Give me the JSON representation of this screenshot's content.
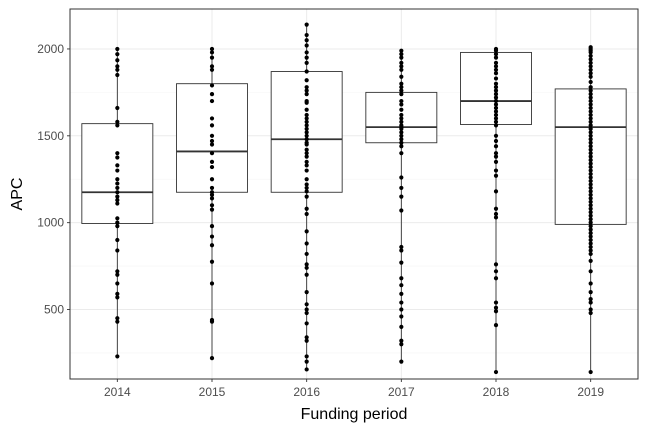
{
  "chart_data": {
    "type": "box",
    "xlabel": "Funding period",
    "ylabel": "APC",
    "ylim": [
      100,
      2230
    ],
    "yticks": [
      500,
      1000,
      1500,
      2000
    ],
    "grid": true,
    "legend": "none",
    "colors": {
      "panel_border": "#333333",
      "grid_major": "#ebebeb",
      "grid_minor": "#f5f5f5",
      "points": "#000000",
      "box_outline": "#333333"
    },
    "categories": [
      "2014",
      "2015",
      "2016",
      "2017",
      "2018",
      "2019"
    ],
    "boxes": [
      {
        "category": "2014",
        "whisker_low": 230,
        "q1": 995,
        "median": 1175,
        "q3": 1570,
        "whisker_high": 2000,
        "points": [
          2000,
          1970,
          1935,
          1900,
          1880,
          1850,
          1660,
          1580,
          1560,
          1400,
          1375,
          1330,
          1300,
          1250,
          1225,
          1200,
          1175,
          1150,
          1130,
          1110,
          1025,
          1000,
          980,
          900,
          840,
          720,
          700,
          650,
          590,
          570,
          450,
          430,
          230
        ]
      },
      {
        "category": "2015",
        "whisker_low": 220,
        "q1": 1175,
        "median": 1410,
        "q3": 1800,
        "whisker_high": 2000,
        "points": [
          2000,
          1980,
          1950,
          1900,
          1880,
          1790,
          1740,
          1700,
          1600,
          1560,
          1500,
          1470,
          1450,
          1400,
          1350,
          1320,
          1250,
          1200,
          1175,
          1160,
          1140,
          1100,
          1075,
          980,
          920,
          870,
          775,
          650,
          440,
          430,
          220
        ]
      },
      {
        "category": "2016",
        "whisker_low": 155,
        "q1": 1175,
        "median": 1480,
        "q3": 1870,
        "whisker_high": 2140,
        "points": [
          2140,
          2080,
          2050,
          2020,
          1980,
          1950,
          1920,
          1870,
          1820,
          1780,
          1760,
          1740,
          1700,
          1690,
          1650,
          1620,
          1600,
          1580,
          1560,
          1540,
          1520,
          1500,
          1480,
          1460,
          1450,
          1420,
          1400,
          1380,
          1350,
          1330,
          1300,
          1250,
          1220,
          1200,
          1180,
          1150,
          1080,
          1050,
          950,
          880,
          820,
          760,
          740,
          700,
          600,
          530,
          500,
          480,
          420,
          340,
          320,
          230,
          200,
          155
        ]
      },
      {
        "category": "2017",
        "whisker_low": 200,
        "q1": 1460,
        "median": 1550,
        "q3": 1750,
        "whisker_high": 1990,
        "points": [
          1990,
          1970,
          1950,
          1920,
          1900,
          1880,
          1840,
          1800,
          1780,
          1760,
          1740,
          1700,
          1680,
          1650,
          1620,
          1600,
          1580,
          1560,
          1550,
          1540,
          1520,
          1500,
          1480,
          1460,
          1440,
          1400,
          1260,
          1200,
          1150,
          1070,
          860,
          840,
          770,
          680,
          640,
          590,
          540,
          500,
          460,
          400,
          320,
          300,
          200
        ]
      },
      {
        "category": "2018",
        "whisker_low": 140,
        "q1": 1565,
        "median": 1700,
        "q3": 1980,
        "whisker_high": 2000,
        "points": [
          2000,
          1990,
          1970,
          1950,
          1920,
          1900,
          1880,
          1860,
          1830,
          1800,
          1780,
          1760,
          1740,
          1720,
          1700,
          1680,
          1660,
          1640,
          1620,
          1600,
          1580,
          1560,
          1500,
          1470,
          1440,
          1400,
          1380,
          1350,
          1300,
          1270,
          1180,
          1080,
          1050,
          1030,
          760,
          720,
          680,
          540,
          510,
          490,
          410,
          140
        ]
      },
      {
        "category": "2019",
        "whisker_low": 140,
        "q1": 990,
        "median": 1550,
        "q3": 1770,
        "whisker_high": 2010,
        "points": [
          2010,
          2000,
          1990,
          1980,
          1960,
          1940,
          1920,
          1900,
          1880,
          1860,
          1840,
          1810,
          1780,
          1760,
          1740,
          1720,
          1700,
          1680,
          1660,
          1640,
          1620,
          1600,
          1580,
          1560,
          1540,
          1520,
          1500,
          1480,
          1460,
          1440,
          1420,
          1400,
          1380,
          1360,
          1340,
          1320,
          1300,
          1280,
          1260,
          1240,
          1220,
          1200,
          1180,
          1160,
          1140,
          1120,
          1100,
          1080,
          1060,
          1040,
          1020,
          1000,
          980,
          960,
          940,
          920,
          900,
          880,
          860,
          840,
          820,
          780,
          720,
          650,
          600,
          560,
          540,
          500,
          480,
          140
        ]
      }
    ]
  }
}
